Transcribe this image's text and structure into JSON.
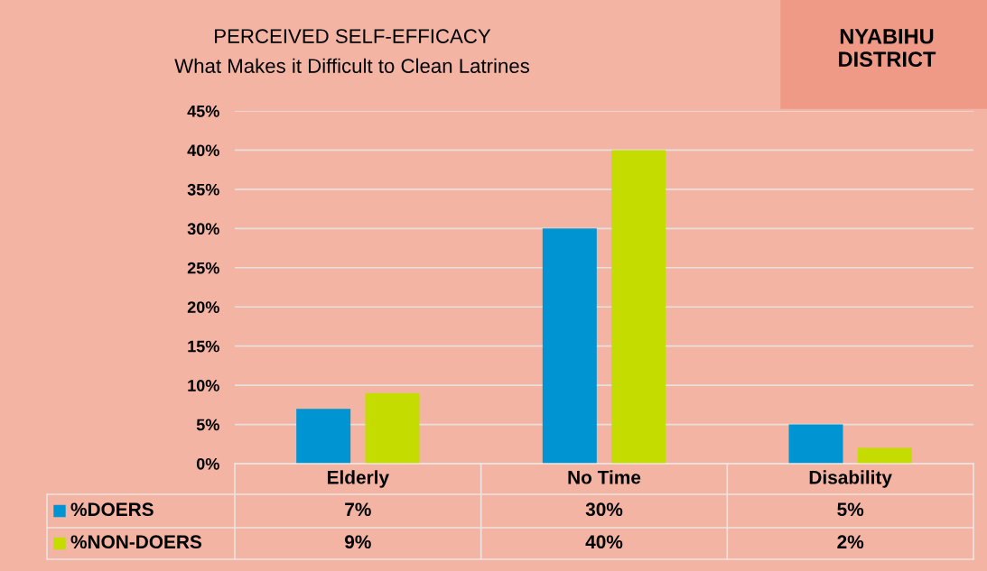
{
  "chart_data": {
    "type": "bar",
    "title": "PERCEIVED SELF-EFFICACY",
    "subtitle": "What Makes it Difficult to Clean Latrines",
    "annotations": [
      "NYABIHU\nDISTRICT"
    ],
    "categories": [
      "Elderly",
      "No Time",
      "Disability"
    ],
    "series": [
      {
        "name": "%DOERS",
        "color": "#0094d2",
        "values": [
          7,
          30,
          5
        ],
        "value_labels": [
          "7%",
          "30%",
          "5%"
        ]
      },
      {
        "name": "%NON-DOERS",
        "color": "#c4dc00",
        "values": [
          9,
          40,
          2
        ],
        "value_labels": [
          "9%",
          "40%",
          "2%"
        ]
      }
    ],
    "ylim": [
      0,
      45
    ],
    "yticks": [
      {
        "value": 0,
        "label": "0%"
      },
      {
        "value": 5,
        "label": "5%"
      },
      {
        "value": 10,
        "label": "10%"
      },
      {
        "value": 15,
        "label": "15%"
      },
      {
        "value": 20,
        "label": "20%"
      },
      {
        "value": 25,
        "label": "25%"
      },
      {
        "value": 30,
        "label": "30%"
      },
      {
        "value": 35,
        "label": "35%"
      },
      {
        "value": 40,
        "label": "40%"
      },
      {
        "value": 45,
        "label": "45%"
      }
    ],
    "grid": "y",
    "legend": "bottom left"
  }
}
